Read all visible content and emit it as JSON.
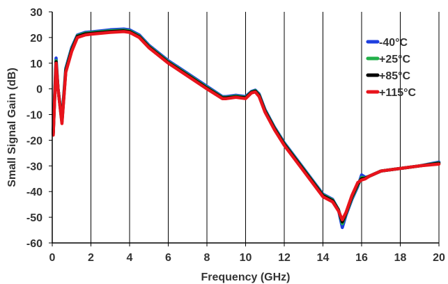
{
  "chart_data": {
    "type": "line",
    "title": "",
    "xlabel": "Frequency (GHz)",
    "ylabel": "Small Signal Gain (dB)",
    "xlim": [
      0,
      20
    ],
    "ylim": [
      -60,
      30
    ],
    "x_ticks": [
      0,
      2,
      4,
      6,
      8,
      10,
      12,
      14,
      16,
      18,
      20
    ],
    "y_ticks": [
      30,
      20,
      10,
      0,
      -10,
      -20,
      -30,
      -40,
      -50,
      -60
    ],
    "x_tick_labels": [
      "0",
      "2",
      "4",
      "6",
      "8",
      "10",
      "12",
      "14",
      "16",
      "18",
      "20"
    ],
    "y_tick_labels": [
      "30",
      "20",
      "10",
      "0",
      "-10",
      "-20",
      "-30",
      "-40",
      "-50",
      "-60"
    ],
    "grid": "vertical",
    "legend_position": "right",
    "series": [
      {
        "name": "-40°C",
        "color": "#1f3fe0",
        "x": [
          0.05,
          0.2,
          0.3,
          0.5,
          0.7,
          1.0,
          1.3,
          1.7,
          2.0,
          3.0,
          3.7,
          4.0,
          4.5,
          5.0,
          6.0,
          7.0,
          8.0,
          8.8,
          9.0,
          9.5,
          10.0,
          10.3,
          10.5,
          10.7,
          11.0,
          11.5,
          12.0,
          13.0,
          14.0,
          14.5,
          14.8,
          15.0,
          15.2,
          15.5,
          15.8,
          16.0,
          16.2,
          16.4,
          17.0,
          18.0,
          19.0,
          20.0
        ],
        "y": [
          -16,
          12,
          0,
          -12,
          8,
          16,
          21,
          22,
          22.2,
          23,
          23.3,
          23,
          21,
          17,
          11,
          6,
          1,
          -3,
          -3,
          -2.5,
          -3,
          -1,
          -0.5,
          -2,
          -8,
          -15,
          -21,
          -31,
          -41,
          -43,
          -47,
          -54,
          -49,
          -43,
          -38,
          -33.5,
          -34.5,
          -34,
          -32,
          -31,
          -30,
          -28.5
        ]
      },
      {
        "name": "+25°C",
        "color": "#22b04a",
        "x": [
          0.05,
          0.2,
          0.3,
          0.5,
          0.7,
          1.0,
          1.3,
          1.7,
          2.0,
          3.0,
          3.7,
          4.0,
          4.5,
          5.0,
          6.0,
          7.0,
          8.0,
          8.8,
          9.0,
          9.5,
          10.0,
          10.3,
          10.5,
          10.7,
          11.0,
          11.5,
          12.0,
          13.0,
          14.0,
          14.5,
          14.8,
          15.0,
          15.2,
          15.5,
          15.8,
          16.0,
          16.2,
          16.4,
          17.0,
          18.0,
          19.0,
          20.0
        ],
        "y": [
          -17,
          11,
          0,
          -12.5,
          7.5,
          15.5,
          20.7,
          21.7,
          21.9,
          22.6,
          22.9,
          22.6,
          20.6,
          16.6,
          10.6,
          5.6,
          0.6,
          -3.3,
          -3.3,
          -2.8,
          -3.3,
          -1.2,
          -0.7,
          -2.3,
          -8.3,
          -15.3,
          -21.3,
          -31.3,
          -41.3,
          -43.3,
          -47,
          -52.5,
          -48.5,
          -42.5,
          -37.5,
          -34.5,
          -34.7,
          -34,
          -32,
          -31,
          -30,
          -28.8
        ]
      },
      {
        "name": "+85°C",
        "color": "#000000",
        "x": [
          0.05,
          0.2,
          0.3,
          0.5,
          0.7,
          1.0,
          1.3,
          1.7,
          2.0,
          3.0,
          3.7,
          4.0,
          4.5,
          5.0,
          6.0,
          7.0,
          8.0,
          8.8,
          9.0,
          9.5,
          10.0,
          10.3,
          10.5,
          10.7,
          11.0,
          11.5,
          12.0,
          13.0,
          14.0,
          14.5,
          14.8,
          15.0,
          15.2,
          15.5,
          15.8,
          16.0,
          16.2,
          16.4,
          17.0,
          18.0,
          19.0,
          20.0
        ],
        "y": [
          -17.5,
          10.5,
          0,
          -13,
          7,
          15,
          20.4,
          21.4,
          21.6,
          22.3,
          22.6,
          22.3,
          20.3,
          16.3,
          10.3,
          5.3,
          0.3,
          -3.5,
          -3.5,
          -3.1,
          -3.5,
          -1.4,
          -0.9,
          -2.6,
          -8.6,
          -15.6,
          -21.6,
          -31.6,
          -41.6,
          -43.6,
          -47.2,
          -51.8,
          -48.2,
          -42,
          -37,
          -35,
          -34.8,
          -34,
          -32,
          -31,
          -30,
          -29
        ]
      },
      {
        "name": "+115°C",
        "color": "#e8141c",
        "x": [
          0.05,
          0.2,
          0.3,
          0.5,
          0.7,
          1.0,
          1.3,
          1.7,
          2.0,
          3.0,
          3.7,
          4.0,
          4.5,
          5.0,
          6.0,
          7.0,
          8.0,
          8.8,
          9.0,
          9.5,
          10.0,
          10.3,
          10.5,
          10.7,
          11.0,
          11.5,
          12.0,
          13.0,
          14.0,
          14.5,
          14.8,
          15.0,
          15.2,
          15.5,
          15.8,
          16.0,
          16.2,
          16.4,
          17.0,
          18.0,
          19.0,
          20.0
        ],
        "y": [
          -18,
          10,
          0,
          -13.5,
          6.5,
          14.5,
          20,
          21,
          21.3,
          22,
          22.3,
          22,
          20,
          16,
          10,
          5,
          0,
          -3.8,
          -3.8,
          -3.3,
          -3.8,
          -1.6,
          -1.2,
          -3,
          -9,
          -16,
          -22,
          -32,
          -42,
          -44,
          -47.5,
          -51,
          -48,
          -41.5,
          -36.5,
          -35.5,
          -35,
          -34,
          -32,
          -31,
          -30,
          -29.3
        ]
      }
    ]
  }
}
